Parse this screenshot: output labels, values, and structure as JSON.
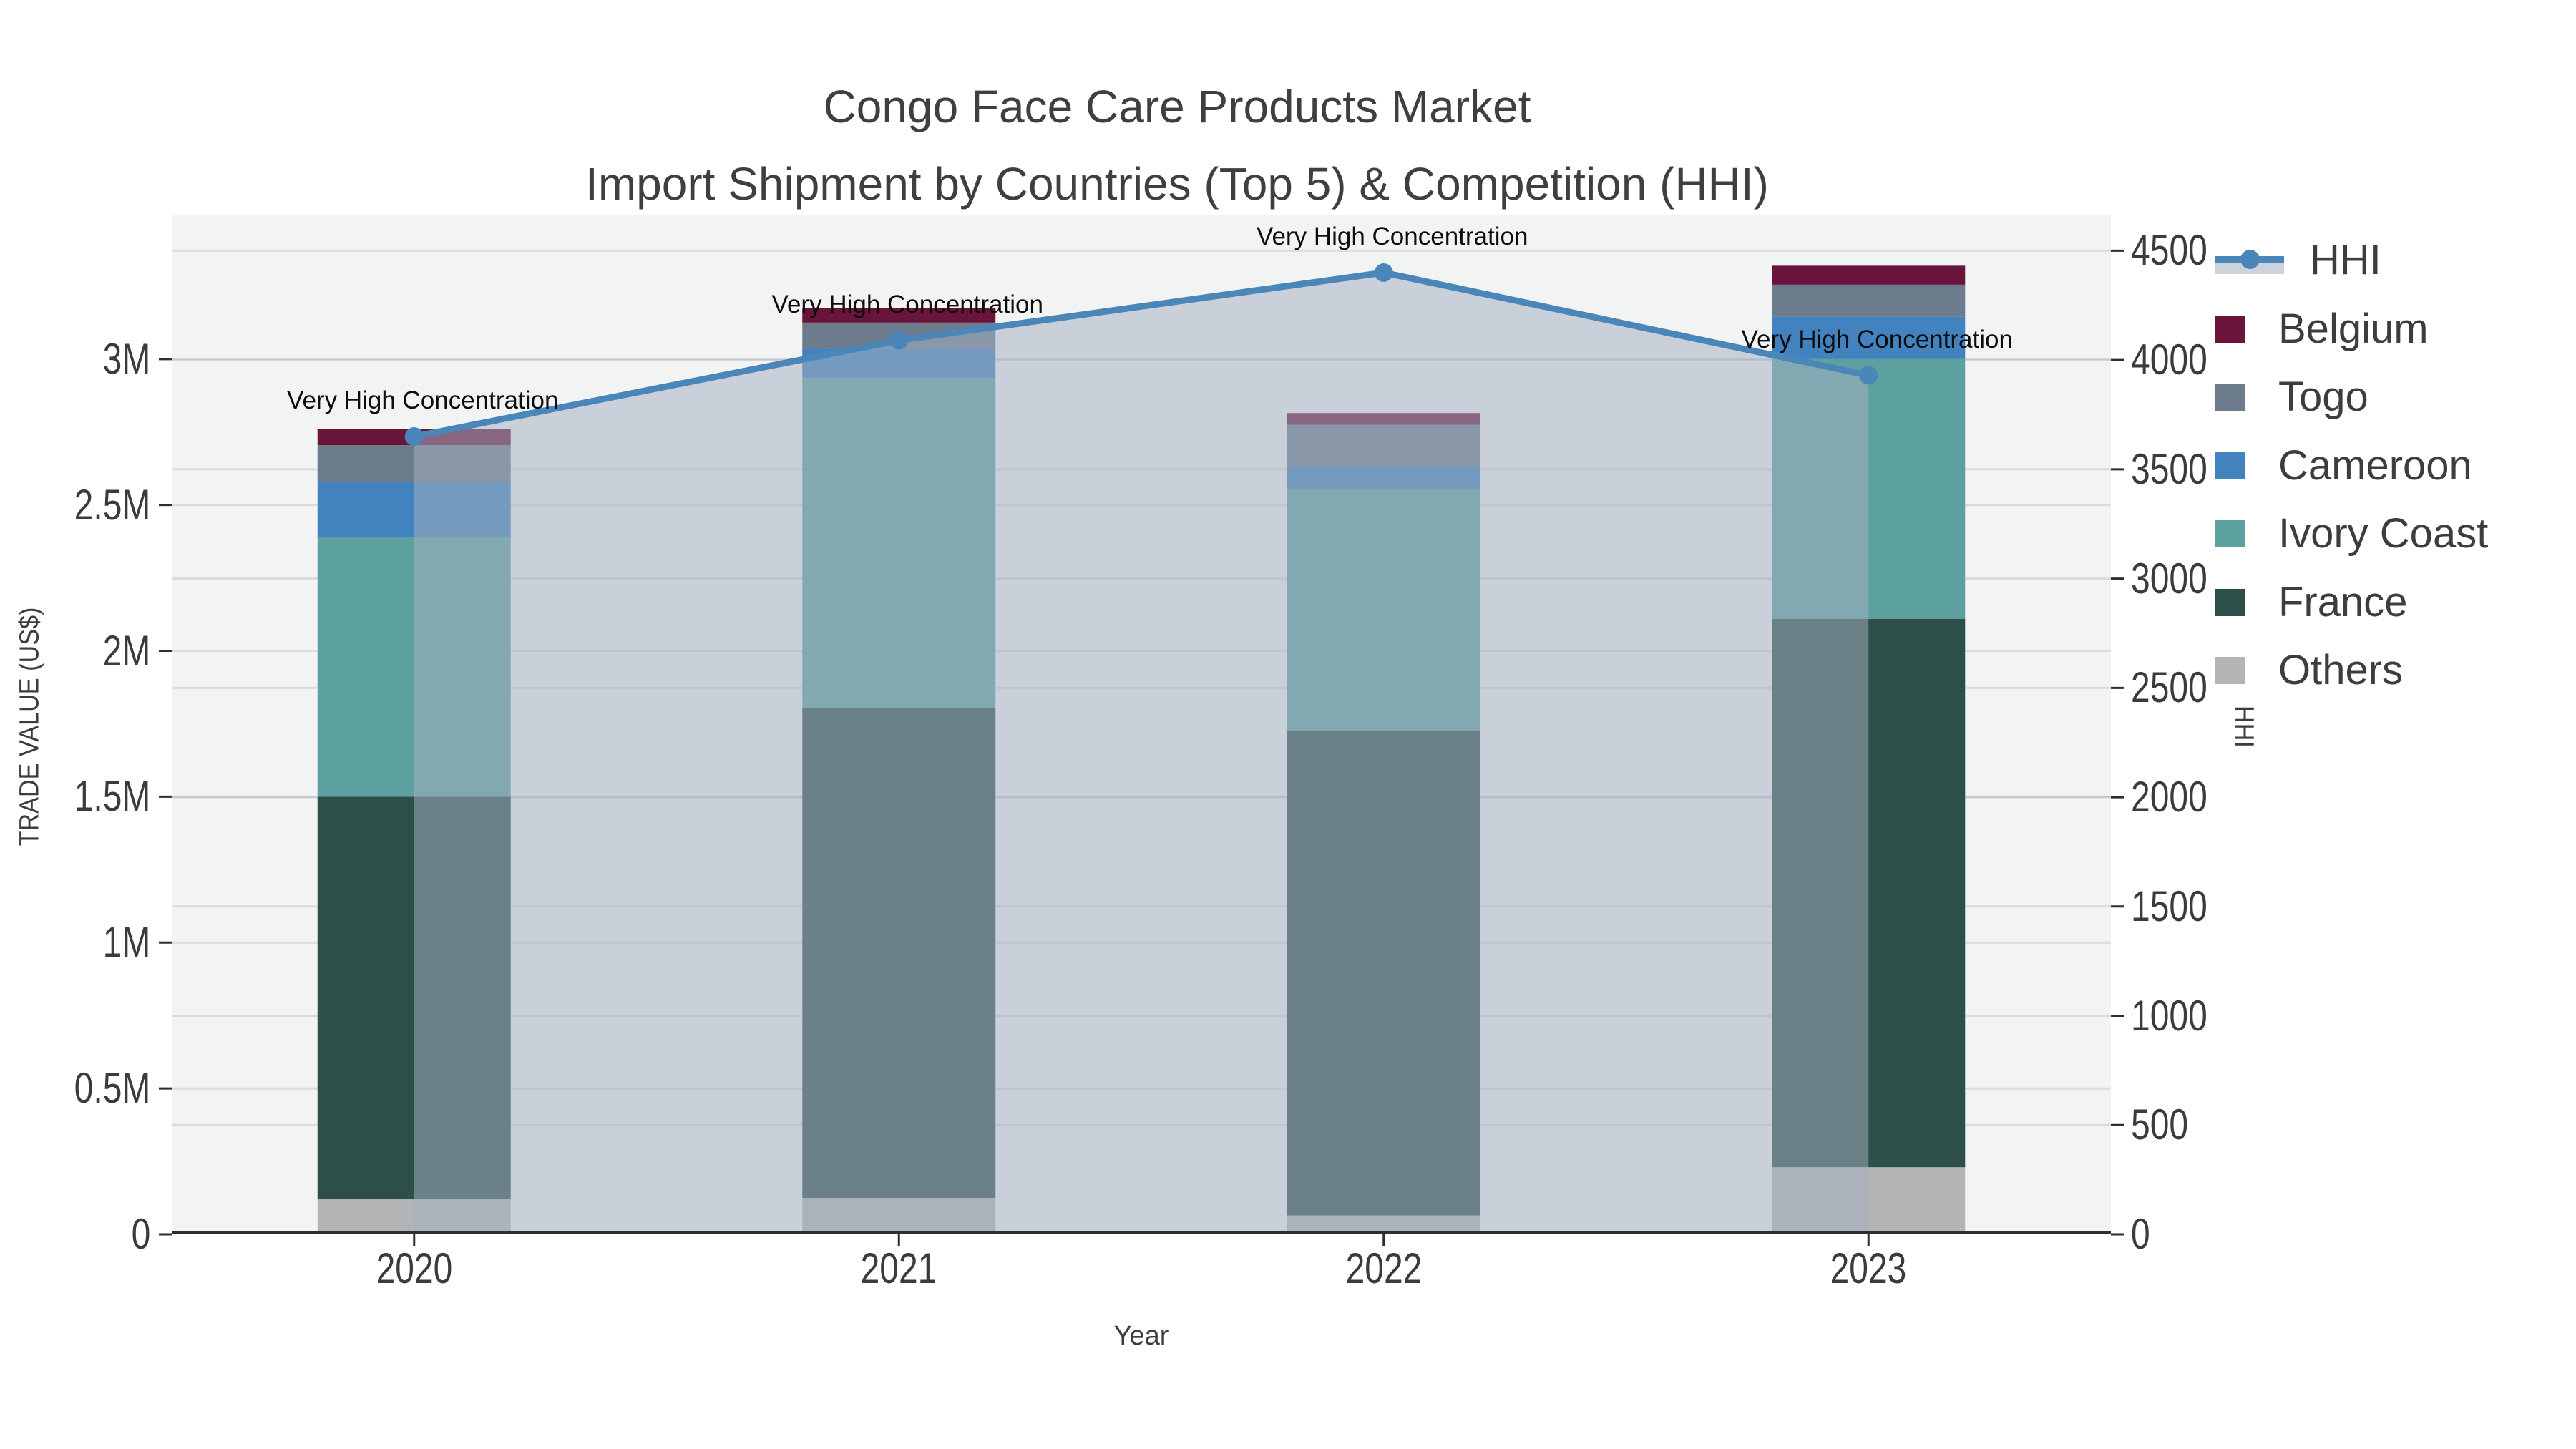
{
  "title": {
    "line1": "Congo Face Care Products Market",
    "line2": "Import Shipment by Countries (Top 5) & Competition (HHI)"
  },
  "axes": {
    "left": {
      "title": "TRADE VALUE (US$)",
      "tick_labels": [
        "0",
        "0.5M",
        "1M",
        "1.5M",
        "2M",
        "2.5M",
        "3M"
      ],
      "tick_values": [
        0,
        500000,
        1000000,
        1500000,
        2000000,
        2500000,
        3000000
      ],
      "max": 3495000
    },
    "right": {
      "title": "HHI",
      "tick_labels": [
        "0",
        "500",
        "1000",
        "1500",
        "2000",
        "2500",
        "3000",
        "3500",
        "4000",
        "4500"
      ],
      "tick_values": [
        0,
        500,
        1000,
        1500,
        2000,
        2500,
        3000,
        3500,
        4000,
        4500
      ],
      "max": 4665
    },
    "x": {
      "title": "Year",
      "tick_labels": [
        "2020",
        "2021",
        "2022",
        "2023"
      ]
    }
  },
  "chart_data": {
    "type": "bar-line-combo",
    "categories": [
      "2020",
      "2021",
      "2022",
      "2023"
    ],
    "stacked_bar_series_bottom_to_top": [
      {
        "name": "Others",
        "color": "#b2b4b6",
        "values": [
          120000,
          125000,
          65000,
          230000
        ]
      },
      {
        "name": "France",
        "color": "#2c4f49",
        "values": [
          1380000,
          1680000,
          1660000,
          1880000
        ]
      },
      {
        "name": "Ivory Coast",
        "color": "#5ca1a0",
        "values": [
          890000,
          1130000,
          830000,
          890000
        ]
      },
      {
        "name": "Cameroon",
        "color": "#4182bf",
        "values": [
          190000,
          100000,
          75000,
          145000
        ]
      },
      {
        "name": "Togo",
        "color": "#6d7c8d",
        "values": [
          125000,
          90000,
          145000,
          110000
        ]
      },
      {
        "name": "Belgium",
        "color": "#69143b",
        "values": [
          55000,
          50000,
          40000,
          65000
        ]
      }
    ],
    "line_series": {
      "name": "HHI",
      "axis": "right",
      "color": "#4a86b8",
      "area_fill": "rgba(164,176,194,0.52)",
      "values": [
        3650,
        4090,
        4400,
        3930
      ]
    },
    "annotations": [
      {
        "text": "Very High Concentration",
        "category": "2020"
      },
      {
        "text": "Very High Concentration",
        "category": "2021"
      },
      {
        "text": "Very High Concentration",
        "category": "2022"
      },
      {
        "text": "Very High Concentration",
        "category": "2023"
      }
    ],
    "ylabel": "TRADE VALUE (US$)",
    "y2label": "HHI",
    "xlabel": "Year",
    "ylim": [
      0,
      3495000
    ],
    "y2lim": [
      0,
      4665
    ],
    "grid": "horizontal, every 0.5M (left) and every 500 (right)",
    "legend_position": "upper right, outside plot",
    "legend_order": [
      "HHI",
      "Belgium",
      "Togo",
      "Cameroon",
      "Ivory Coast",
      "France",
      "Others"
    ]
  },
  "style_colors": {
    "plot_background": "#f2f3f3",
    "gridline": "rgba(128,138,150,0.22)",
    "axis_line": "#2e2e2e",
    "tick_text": "#3b3b3b",
    "title_text": "#3f3f3f"
  }
}
